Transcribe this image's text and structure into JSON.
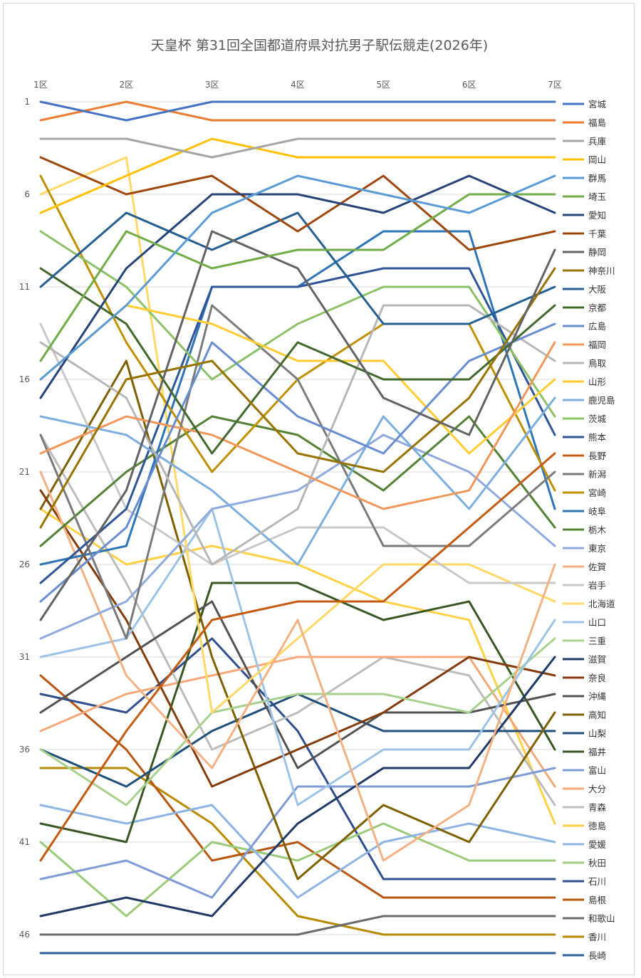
{
  "chart_data": {
    "type": "line",
    "title": "天皇杯 第31回全国都道府県対抗男子駅伝競走(2026年)",
    "xlabel": "",
    "ylabel": "",
    "categories": [
      "1区",
      "2区",
      "3区",
      "4区",
      "5区",
      "6区",
      "7区"
    ],
    "y_ticks": [
      1,
      6,
      11,
      16,
      21,
      26,
      31,
      36,
      41,
      46
    ],
    "ylim": [
      1,
      47
    ],
    "y_reversed": true,
    "grid": true,
    "legend_position": "right",
    "series": [
      {
        "name": "宮城",
        "color": "#4472C4",
        "values": [
          1,
          2,
          1,
          1,
          1,
          1,
          1
        ]
      },
      {
        "name": "福島",
        "color": "#ED7D31",
        "values": [
          2,
          1,
          2,
          2,
          2,
          2,
          2
        ]
      },
      {
        "name": "兵庫",
        "color": "#A5A5A5",
        "values": [
          3,
          3,
          4,
          3,
          3,
          3,
          3
        ]
      },
      {
        "name": "岡山",
        "color": "#FFC000",
        "values": [
          7,
          5,
          3,
          4,
          4,
          4,
          4
        ]
      },
      {
        "name": "群馬",
        "color": "#5B9BD5",
        "values": [
          16,
          12,
          7,
          5,
          6,
          7,
          5
        ]
      },
      {
        "name": "埼玉",
        "color": "#70AD47",
        "values": [
          15,
          8,
          10,
          9,
          9,
          6,
          6
        ]
      },
      {
        "name": "愛知",
        "color": "#264478",
        "values": [
          17,
          10,
          6,
          6,
          7,
          5,
          7
        ]
      },
      {
        "name": "千葉",
        "color": "#9E480E",
        "values": [
          4,
          6,
          5,
          8,
          5,
          9,
          8
        ]
      },
      {
        "name": "静岡",
        "color": "#636363",
        "values": [
          29,
          22,
          8,
          10,
          17,
          19,
          9
        ]
      },
      {
        "name": "神奈川",
        "color": "#997300",
        "values": [
          24,
          16,
          15,
          20,
          21,
          17,
          10
        ]
      },
      {
        "name": "大阪",
        "color": "#255E91",
        "values": [
          11,
          7,
          9,
          7,
          13,
          13,
          11
        ]
      },
      {
        "name": "京都",
        "color": "#43682B",
        "values": [
          10,
          13,
          20,
          14,
          16,
          16,
          12
        ]
      },
      {
        "name": "広島",
        "color": "#698ED0",
        "values": [
          28,
          24,
          14,
          18,
          20,
          15,
          13
        ]
      },
      {
        "name": "福岡",
        "color": "#F1975A",
        "values": [
          20,
          18,
          19,
          21,
          23,
          22,
          14
        ]
      },
      {
        "name": "鳥取",
        "color": "#B7B7B7",
        "values": [
          14,
          17,
          26,
          23,
          12,
          12,
          15
        ]
      },
      {
        "name": "山形",
        "color": "#FFCD33",
        "values": [
          16,
          12,
          13,
          15,
          15,
          20,
          16
        ]
      },
      {
        "name": "鹿児島",
        "color": "#7CAFDD",
        "values": [
          18,
          19,
          22,
          26,
          18,
          23,
          17
        ]
      },
      {
        "name": "茨城",
        "color": "#8CC168",
        "values": [
          8,
          11,
          16,
          13,
          11,
          11,
          18
        ]
      },
      {
        "name": "熊本",
        "color": "#2F5597",
        "values": [
          27,
          23,
          11,
          11,
          10,
          10,
          19
        ]
      },
      {
        "name": "長野",
        "color": "#C55A11",
        "values": [
          42,
          35,
          29,
          28,
          28,
          24,
          20
        ]
      },
      {
        "name": "新潟",
        "color": "#7B7B7B",
        "values": [
          19,
          30,
          12,
          16,
          25,
          25,
          21
        ]
      },
      {
        "name": "宮崎",
        "color": "#BF9000",
        "values": [
          5,
          14,
          21,
          16,
          13,
          13,
          22
        ]
      },
      {
        "name": "岐阜",
        "color": "#2E75B6",
        "values": [
          26,
          25,
          11,
          11,
          8,
          8,
          23
        ]
      },
      {
        "name": "栃木",
        "color": "#548235",
        "values": [
          25,
          21,
          18,
          19,
          22,
          18,
          24
        ]
      },
      {
        "name": "東京",
        "color": "#8FAADC",
        "values": [
          30,
          28,
          23,
          22,
          19,
          21,
          25
        ]
      },
      {
        "name": "佐賀",
        "color": "#F4B183",
        "values": [
          21,
          32,
          37,
          29,
          42,
          39,
          26
        ]
      },
      {
        "name": "岩手",
        "color": "#C9C9C9",
        "values": [
          13,
          23,
          26,
          24,
          24,
          27,
          27
        ]
      },
      {
        "name": "北海道",
        "color": "#FFD966",
        "values": [
          6,
          4,
          34,
          30,
          26,
          26,
          28
        ]
      },
      {
        "name": "山口",
        "color": "#9DC3E6",
        "values": [
          31,
          30,
          23,
          39,
          36,
          36,
          29
        ]
      },
      {
        "name": "三重",
        "color": "#A9D18E",
        "values": [
          36,
          39,
          34,
          33,
          33,
          34,
          30
        ]
      },
      {
        "name": "滋賀",
        "color": "#203864",
        "values": [
          45,
          44,
          45,
          40,
          37,
          37,
          31
        ]
      },
      {
        "name": "奈良",
        "color": "#843C0C",
        "values": [
          22,
          29,
          38,
          36,
          34,
          31,
          32
        ]
      },
      {
        "name": "沖縄",
        "color": "#525252",
        "values": [
          34,
          31,
          28,
          37,
          34,
          34,
          33
        ]
      },
      {
        "name": "高知",
        "color": "#7F6000",
        "values": [
          23,
          15,
          31,
          43,
          39,
          41,
          34
        ]
      },
      {
        "name": "山梨",
        "color": "#1F4E79",
        "values": [
          36,
          38,
          35,
          33,
          35,
          35,
          35
        ]
      },
      {
        "name": "福井",
        "color": "#385723",
        "values": [
          40,
          41,
          27,
          27,
          29,
          28,
          36
        ]
      },
      {
        "name": "富山",
        "color": "#7F9BD5",
        "values": [
          43,
          42,
          44,
          38,
          38,
          38,
          37
        ]
      },
      {
        "name": "大分",
        "color": "#F4A97A",
        "values": [
          35,
          33,
          32,
          31,
          31,
          31,
          38
        ]
      },
      {
        "name": "青森",
        "color": "#BDBDBD",
        "values": [
          19,
          27,
          36,
          34,
          31,
          32,
          39
        ]
      },
      {
        "name": "徳島",
        "color": "#FFD145",
        "values": [
          23,
          26,
          25,
          26,
          28,
          29,
          40
        ]
      },
      {
        "name": "愛媛",
        "color": "#8DB4E2",
        "values": [
          39,
          40,
          39,
          44,
          41,
          40,
          41
        ]
      },
      {
        "name": "秋田",
        "color": "#9BCB7A",
        "values": [
          41,
          45,
          41,
          42,
          40,
          42,
          42
        ]
      },
      {
        "name": "石川",
        "color": "#2F4E8C",
        "values": [
          33,
          34,
          30,
          35,
          43,
          43,
          43
        ]
      },
      {
        "name": "島根",
        "color": "#B8550F",
        "values": [
          32,
          36,
          42,
          41,
          44,
          44,
          44
        ]
      },
      {
        "name": "和歌山",
        "color": "#6B6B6B",
        "values": [
          46,
          46,
          46,
          46,
          45,
          45,
          45
        ]
      },
      {
        "name": "香川",
        "color": "#B88A00",
        "values": [
          37,
          37,
          40,
          45,
          46,
          46,
          46
        ]
      },
      {
        "name": "長崎",
        "color": "#2A6099",
        "values": [
          47,
          47,
          47,
          47,
          47,
          47,
          47
        ]
      }
    ]
  }
}
